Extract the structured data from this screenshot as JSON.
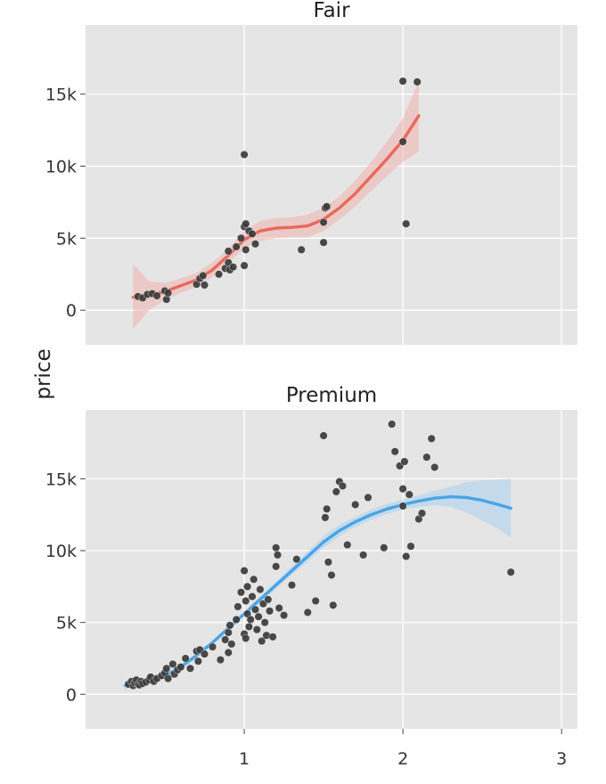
{
  "chart_data": {
    "type": "scatter",
    "ylabel": "price",
    "xlabel": "",
    "shared_x": {
      "ticks": [
        1,
        2,
        3
      ],
      "tick_labels": [
        "1",
        "2",
        "3"
      ],
      "xlim": [
        0.0,
        3.1
      ]
    },
    "shared_y": {
      "ticks": [
        0,
        5000,
        10000,
        15000
      ],
      "tick_labels": [
        "0",
        "5k",
        "10k",
        "15k"
      ],
      "ylim": [
        -2400,
        19800
      ]
    },
    "panels": [
      {
        "title": "Fair",
        "smooth_color": "#e8695b",
        "band_color": "#f0b3ad",
        "smooth": [
          [
            0.3,
            900
          ],
          [
            0.4,
            1000
          ],
          [
            0.5,
            1300
          ],
          [
            0.6,
            1700
          ],
          [
            0.7,
            2100
          ],
          [
            0.8,
            2800
          ],
          [
            0.9,
            3800
          ],
          [
            1.0,
            4900
          ],
          [
            1.1,
            5500
          ],
          [
            1.2,
            5700
          ],
          [
            1.3,
            5750
          ],
          [
            1.4,
            5850
          ],
          [
            1.5,
            6300
          ],
          [
            1.6,
            7100
          ],
          [
            1.7,
            8100
          ],
          [
            1.8,
            9300
          ],
          [
            1.9,
            10500
          ],
          [
            2.0,
            11800
          ],
          [
            2.1,
            13500
          ]
        ],
        "band_lower": [
          [
            0.3,
            -1300
          ],
          [
            0.4,
            0
          ],
          [
            0.5,
            700
          ],
          [
            0.6,
            1200
          ],
          [
            0.7,
            1600
          ],
          [
            0.8,
            2300
          ],
          [
            0.9,
            3300
          ],
          [
            1.0,
            4300
          ],
          [
            1.1,
            4800
          ],
          [
            1.2,
            5000
          ],
          [
            1.3,
            5050
          ],
          [
            1.4,
            5050
          ],
          [
            1.5,
            5500
          ],
          [
            1.6,
            6300
          ],
          [
            1.7,
            7200
          ],
          [
            1.8,
            8300
          ],
          [
            1.9,
            9300
          ],
          [
            2.0,
            10300
          ],
          [
            2.1,
            11000
          ]
        ],
        "band_upper": [
          [
            0.3,
            3200
          ],
          [
            0.4,
            2000
          ],
          [
            0.5,
            1900
          ],
          [
            0.6,
            2200
          ],
          [
            0.7,
            2600
          ],
          [
            0.8,
            3300
          ],
          [
            0.9,
            4300
          ],
          [
            1.0,
            5500
          ],
          [
            1.1,
            6200
          ],
          [
            1.2,
            6400
          ],
          [
            1.3,
            6450
          ],
          [
            1.4,
            6650
          ],
          [
            1.5,
            7100
          ],
          [
            1.6,
            7900
          ],
          [
            1.7,
            9000
          ],
          [
            1.8,
            10300
          ],
          [
            1.9,
            11700
          ],
          [
            2.0,
            13300
          ],
          [
            2.1,
            15900
          ]
        ],
        "points": [
          [
            0.33,
            950
          ],
          [
            0.36,
            850
          ],
          [
            0.39,
            1100
          ],
          [
            0.42,
            1150
          ],
          [
            0.45,
            1000
          ],
          [
            0.5,
            1350
          ],
          [
            0.51,
            750
          ],
          [
            0.52,
            1200
          ],
          [
            0.7,
            1800
          ],
          [
            0.72,
            2200
          ],
          [
            0.74,
            2400
          ],
          [
            0.75,
            1750
          ],
          [
            0.84,
            2500
          ],
          [
            0.88,
            2900
          ],
          [
            0.9,
            3300
          ],
          [
            0.9,
            4100
          ],
          [
            0.91,
            2800
          ],
          [
            0.93,
            3000
          ],
          [
            0.95,
            4400
          ],
          [
            0.98,
            5000
          ],
          [
            1.0,
            3100
          ],
          [
            1.0,
            5800
          ],
          [
            1.0,
            10800
          ],
          [
            1.01,
            6000
          ],
          [
            1.01,
            4200
          ],
          [
            1.03,
            5500
          ],
          [
            1.05,
            5300
          ],
          [
            1.07,
            4600
          ],
          [
            1.36,
            4200
          ],
          [
            1.5,
            6100
          ],
          [
            1.5,
            4700
          ],
          [
            1.51,
            7100
          ],
          [
            1.52,
            7200
          ],
          [
            2.0,
            15900
          ],
          [
            2.0,
            11700
          ],
          [
            2.02,
            6000
          ],
          [
            2.09,
            15850
          ]
        ]
      },
      {
        "title": "Premium",
        "smooth_color": "#48a4e8",
        "band_color": "#a9d1ef",
        "smooth": [
          [
            0.25,
            600
          ],
          [
            0.3,
            700
          ],
          [
            0.4,
            900
          ],
          [
            0.5,
            1300
          ],
          [
            0.6,
            1900
          ],
          [
            0.7,
            2700
          ],
          [
            0.8,
            3600
          ],
          [
            0.9,
            4600
          ],
          [
            1.0,
            5600
          ],
          [
            1.1,
            6600
          ],
          [
            1.2,
            7600
          ],
          [
            1.3,
            8600
          ],
          [
            1.4,
            9600
          ],
          [
            1.5,
            10600
          ],
          [
            1.6,
            11400
          ],
          [
            1.7,
            12000
          ],
          [
            1.8,
            12500
          ],
          [
            1.9,
            12900
          ],
          [
            2.0,
            13200
          ],
          [
            2.1,
            13450
          ],
          [
            2.2,
            13650
          ],
          [
            2.3,
            13750
          ],
          [
            2.4,
            13700
          ],
          [
            2.5,
            13500
          ],
          [
            2.6,
            13200
          ],
          [
            2.68,
            12950
          ]
        ],
        "band_lower": [
          [
            0.25,
            300
          ],
          [
            0.3,
            500
          ],
          [
            0.4,
            750
          ],
          [
            0.5,
            1150
          ],
          [
            0.6,
            1750
          ],
          [
            0.7,
            2550
          ],
          [
            0.8,
            3450
          ],
          [
            0.9,
            4450
          ],
          [
            1.0,
            5450
          ],
          [
            1.1,
            6400
          ],
          [
            1.2,
            7350
          ],
          [
            1.3,
            8300
          ],
          [
            1.4,
            9250
          ],
          [
            1.5,
            10200
          ],
          [
            1.6,
            11000
          ],
          [
            1.7,
            11650
          ],
          [
            1.8,
            12150
          ],
          [
            1.9,
            12550
          ],
          [
            2.0,
            12850
          ],
          [
            2.1,
            13050
          ],
          [
            2.2,
            13150
          ],
          [
            2.3,
            13050
          ],
          [
            2.4,
            12650
          ],
          [
            2.5,
            12100
          ],
          [
            2.6,
            11500
          ],
          [
            2.68,
            10900
          ]
        ],
        "band_upper": [
          [
            0.25,
            900
          ],
          [
            0.3,
            900
          ],
          [
            0.4,
            1050
          ],
          [
            0.5,
            1450
          ],
          [
            0.6,
            2050
          ],
          [
            0.7,
            2850
          ],
          [
            0.8,
            3750
          ],
          [
            0.9,
            4750
          ],
          [
            1.0,
            5750
          ],
          [
            1.1,
            6800
          ],
          [
            1.2,
            7850
          ],
          [
            1.3,
            8900
          ],
          [
            1.4,
            9950
          ],
          [
            1.5,
            11000
          ],
          [
            1.6,
            11800
          ],
          [
            1.7,
            12350
          ],
          [
            1.8,
            12850
          ],
          [
            1.9,
            13250
          ],
          [
            2.0,
            13550
          ],
          [
            2.1,
            13850
          ],
          [
            2.2,
            14150
          ],
          [
            2.3,
            14450
          ],
          [
            2.4,
            14750
          ],
          [
            2.5,
            14900
          ],
          [
            2.6,
            14950
          ],
          [
            2.68,
            15000
          ]
        ],
        "points": [
          [
            0.27,
            700
          ],
          [
            0.29,
            900
          ],
          [
            0.3,
            600
          ],
          [
            0.31,
            800
          ],
          [
            0.32,
            1000
          ],
          [
            0.33,
            700
          ],
          [
            0.34,
            650
          ],
          [
            0.35,
            900
          ],
          [
            0.36,
            750
          ],
          [
            0.38,
            850
          ],
          [
            0.4,
            1000
          ],
          [
            0.41,
            1200
          ],
          [
            0.43,
            900
          ],
          [
            0.45,
            1100
          ],
          [
            0.48,
            1300
          ],
          [
            0.5,
            1500
          ],
          [
            0.51,
            1800
          ],
          [
            0.52,
            1100
          ],
          [
            0.55,
            2100
          ],
          [
            0.56,
            1400
          ],
          [
            0.58,
            1700
          ],
          [
            0.6,
            1900
          ],
          [
            0.63,
            2500
          ],
          [
            0.66,
            1800
          ],
          [
            0.7,
            3000
          ],
          [
            0.71,
            2300
          ],
          [
            0.72,
            3100
          ],
          [
            0.75,
            2800
          ],
          [
            0.8,
            3300
          ],
          [
            0.85,
            2400
          ],
          [
            0.88,
            3800
          ],
          [
            0.9,
            4300
          ],
          [
            0.9,
            2900
          ],
          [
            0.91,
            4800
          ],
          [
            0.92,
            3500
          ],
          [
            0.95,
            5200
          ],
          [
            0.96,
            6100
          ],
          [
            0.98,
            7100
          ],
          [
            1.0,
            8600
          ],
          [
            1.0,
            4200
          ],
          [
            1.01,
            6500
          ],
          [
            1.01,
            3900
          ],
          [
            1.02,
            5600
          ],
          [
            1.02,
            7500
          ],
          [
            1.03,
            4700
          ],
          [
            1.04,
            5200
          ],
          [
            1.05,
            6800
          ],
          [
            1.06,
            8000
          ],
          [
            1.07,
            5900
          ],
          [
            1.08,
            4500
          ],
          [
            1.09,
            5400
          ],
          [
            1.1,
            7300
          ],
          [
            1.11,
            3700
          ],
          [
            1.12,
            6300
          ],
          [
            1.13,
            5000
          ],
          [
            1.14,
            4100
          ],
          [
            1.15,
            6600
          ],
          [
            1.16,
            5800
          ],
          [
            1.18,
            4000
          ],
          [
            1.2,
            10200
          ],
          [
            1.2,
            8900
          ],
          [
            1.21,
            9700
          ],
          [
            1.22,
            6000
          ],
          [
            1.25,
            5500
          ],
          [
            1.3,
            7600
          ],
          [
            1.33,
            9400
          ],
          [
            1.4,
            5700
          ],
          [
            1.45,
            6500
          ],
          [
            1.5,
            18000
          ],
          [
            1.51,
            12300
          ],
          [
            1.52,
            12900
          ],
          [
            1.53,
            9200
          ],
          [
            1.55,
            8300
          ],
          [
            1.56,
            6200
          ],
          [
            1.58,
            14100
          ],
          [
            1.6,
            14800
          ],
          [
            1.62,
            14500
          ],
          [
            1.65,
            10400
          ],
          [
            1.7,
            13200
          ],
          [
            1.75,
            9700
          ],
          [
            1.78,
            13700
          ],
          [
            1.88,
            10200
          ],
          [
            1.93,
            18800
          ],
          [
            1.95,
            16900
          ],
          [
            1.98,
            15900
          ],
          [
            2.0,
            14300
          ],
          [
            2.0,
            13100
          ],
          [
            2.01,
            16200
          ],
          [
            2.02,
            9600
          ],
          [
            2.04,
            13900
          ],
          [
            2.05,
            10300
          ],
          [
            2.1,
            12200
          ],
          [
            2.12,
            12600
          ],
          [
            2.15,
            16500
          ],
          [
            2.18,
            17800
          ],
          [
            2.2,
            15800
          ],
          [
            2.68,
            8500
          ]
        ]
      }
    ]
  }
}
